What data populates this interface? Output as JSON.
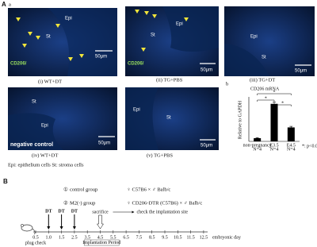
{
  "panel_a": {
    "label": "A",
    "sub_label": "a",
    "images": [
      {
        "caption": "(i) WT+DT",
        "stain": "CD206/",
        "stroma": "St",
        "epithelium": "Epi",
        "scale": "50μm"
      },
      {
        "caption": "(ii) TG+PBS",
        "stain": "CD206/",
        "stroma": "St",
        "epithelium": "Epi",
        "scale": "50μm"
      },
      {
        "caption": "(iii) TG+DT",
        "stroma": "St",
        "epithelium": "Epi",
        "scale": "50μm"
      },
      {
        "caption": "(iv) WT+DT",
        "tag": "negative control",
        "stroma": "St",
        "epithelium": "Epi",
        "scale": "50μm"
      },
      {
        "caption": "(v) TG+PBS",
        "stroma": "St",
        "epithelium": "Epi",
        "scale": "50μm"
      }
    ],
    "legend": "Epi: epithelium cells    St: stroma cells"
  },
  "panel_b": {
    "label": "b",
    "chart": {
      "type": "bar",
      "title": "CD206 mRNA",
      "y_label": "Relative to GAPDH",
      "categories": [
        "non-pregnancy",
        "E3.5",
        "E4.5"
      ],
      "counts": [
        "N=4",
        "N=4",
        "N=4"
      ],
      "values": [
        0.3,
        3.5,
        1.3
      ],
      "errors": [
        0.05,
        0.15,
        0.1
      ],
      "ylim": [
        0,
        4
      ],
      "color": "#000000",
      "significance": [
        "*",
        "*",
        "*"
      ],
      "note": "*: p<0.05"
    }
  },
  "panel_B": {
    "label": "B",
    "groups": [
      {
        "number": "①",
        "name": "control group",
        "cross": "♀ C57B6 × ♂ Balb/c"
      },
      {
        "number": "②",
        "name": "M2(-) group",
        "cross": "♀ CD206-DTR (C57B6) × ♂ Balb/c"
      }
    ],
    "timeline": {
      "days": [
        "0.5",
        "1.0",
        "1.5",
        "2.5",
        "3.5",
        "4.5",
        "5.5",
        "6.5",
        "7.5",
        "8.5",
        "9.5",
        "10.5",
        "11.5",
        "12.5"
      ],
      "axis_label": "embryonic day",
      "injections": [
        "DT",
        "DT",
        "DT"
      ],
      "plug": "plug check",
      "sacrifice": "sacrifice",
      "check": "check the implantation site",
      "period": "Implantation Period"
    }
  }
}
